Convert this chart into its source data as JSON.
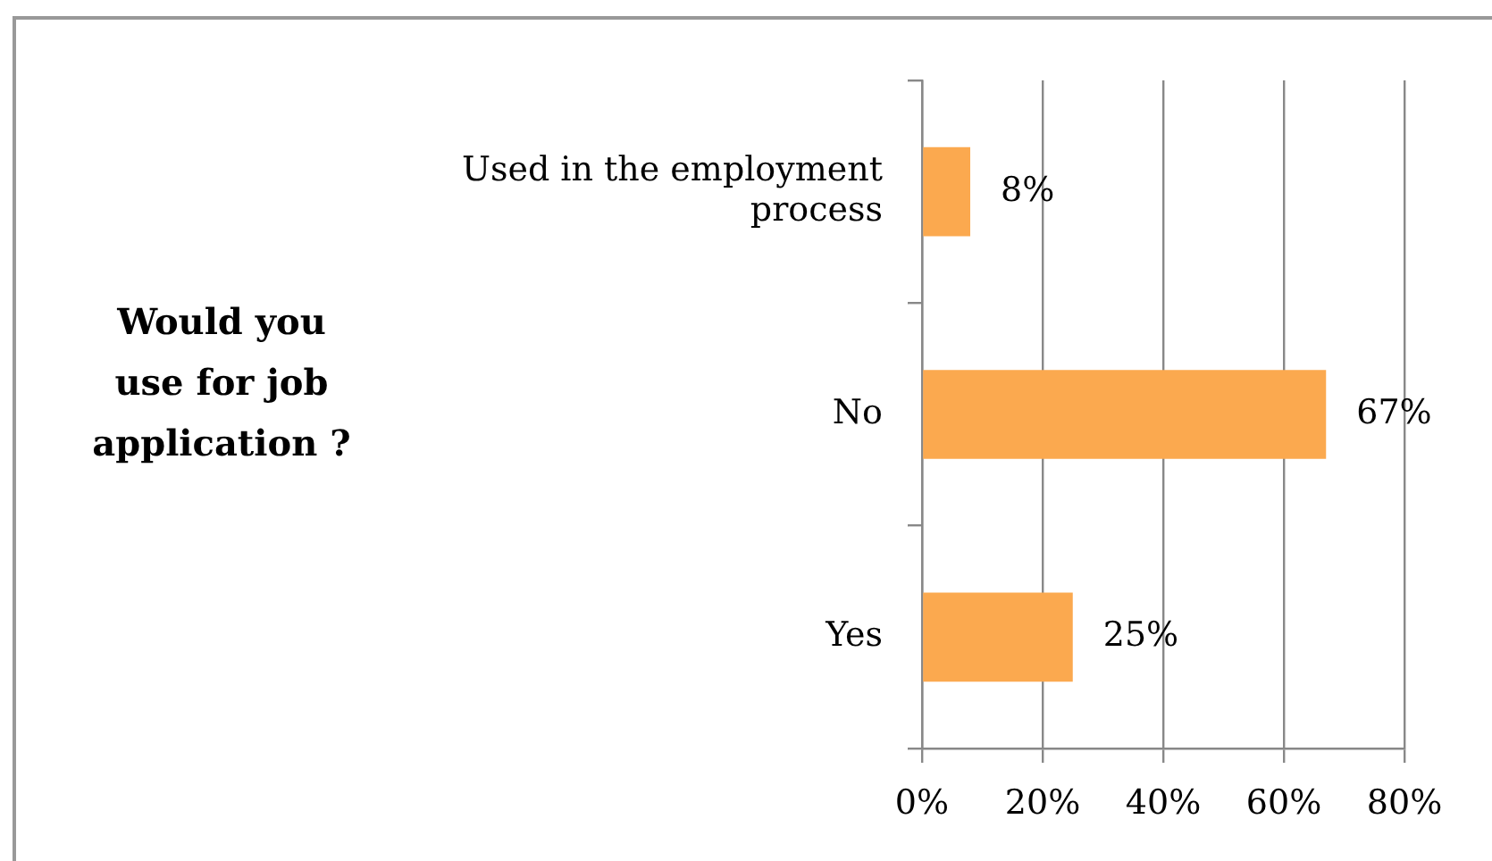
{
  "chart_data": {
    "type": "bar",
    "orientation": "horizontal",
    "ylabel": "Would you use for job application ?",
    "categories": [
      "Used in the employment process",
      "No",
      "Yes"
    ],
    "values": [
      8,
      67,
      25
    ],
    "value_labels": [
      "8%",
      "67%",
      "25%"
    ],
    "color": "#fba94f",
    "xlim": [
      0,
      80
    ],
    "xticks": [
      {
        "value": 0,
        "label": "0%"
      },
      {
        "value": 20,
        "label": "20%"
      },
      {
        "value": 40,
        "label": "40%"
      },
      {
        "value": 60,
        "label": "60%"
      },
      {
        "value": 80,
        "label": "80%"
      }
    ],
    "grid": "x",
    "legend": false
  }
}
